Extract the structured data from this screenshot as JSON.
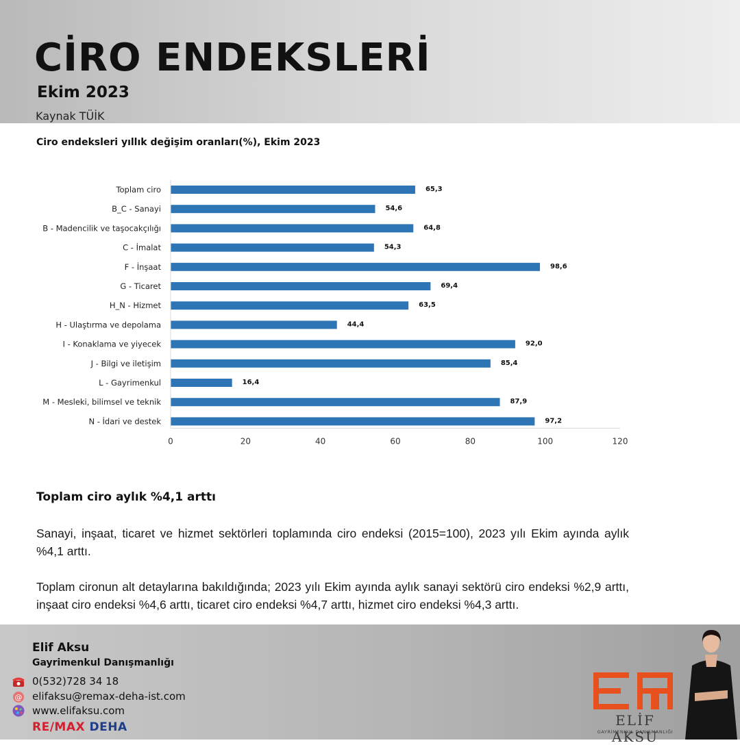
{
  "header": {
    "title": "CİRO ENDEKSLERİ",
    "subtitle": "Ekim 2023",
    "source": "Kaynak TÜİK"
  },
  "chart_data": {
    "type": "bar",
    "orientation": "horizontal",
    "title": "Ciro endeksleri yıllık değişim oranları(%), Ekim 2023",
    "categories": [
      "Toplam ciro",
      "B_C - Sanayi",
      "B - Madencilik ve taşocakçılığı",
      "C - İmalat",
      "F - İnşaat",
      "G - Ticaret",
      "H_N - Hizmet",
      "H - Ulaştırma ve depolama",
      "I - Konaklama ve yiyecek",
      "J - Bilgi ve iletişim",
      "L - Gayrimenkul",
      "M - Mesleki, bilimsel ve teknik",
      "N - İdari ve destek"
    ],
    "values": [
      65.3,
      54.6,
      64.8,
      54.3,
      98.6,
      69.4,
      63.5,
      44.4,
      92.0,
      85.4,
      16.4,
      87.9,
      97.2
    ],
    "value_labels": [
      "65,3",
      "54,6",
      "64,8",
      "54,3",
      "98,6",
      "69,4",
      "63,5",
      "44,4",
      "92,0",
      "85,4",
      "16,4",
      "87,9",
      "97,2"
    ],
    "xlim": [
      0,
      120
    ],
    "xticks": [
      0,
      20,
      40,
      60,
      80,
      100,
      120
    ],
    "bar_color": "#2e75b6",
    "grid": false
  },
  "article": {
    "headline": "Toplam ciro aylık %4,1 arttı",
    "paragraph1": "Sanayi, inşaat, ticaret ve hizmet sektörleri toplamında ciro endeksi (2015=100), 2023 yılı Ekim ayında aylık %4,1 arttı.",
    "paragraph2": "Toplam cironun alt detaylarına bakıldığında; 2023 yılı Ekim ayında aylık sanayi sektörü ciro endeksi %2,9 arttı, inşaat ciro endeksi %4,6 arttı, ticaret ciro endeksi %4,7 arttı, hizmet ciro endeksi %4,3 arttı."
  },
  "footer": {
    "name": "Elif Aksu",
    "role": "Gayrimenkul Danışmanlığı",
    "phone": "0(532)728 34 18",
    "email": "elifaksu@remax-deha-ist.com",
    "website": "www.elifaksu.com",
    "brand_part1": "RE/MAX",
    "brand_part2": "DEHA",
    "logo_name": "ELİF AKSU",
    "logo_tagline": "GAYRİMENKUL DANIŞMANLIĞI",
    "icons": [
      "phone-icon",
      "email-icon",
      "globe-icon"
    ],
    "colors": {
      "brand_red": "#d2202f",
      "brand_blue": "#1f3d8a",
      "logo_orange": "#e8501e"
    }
  }
}
